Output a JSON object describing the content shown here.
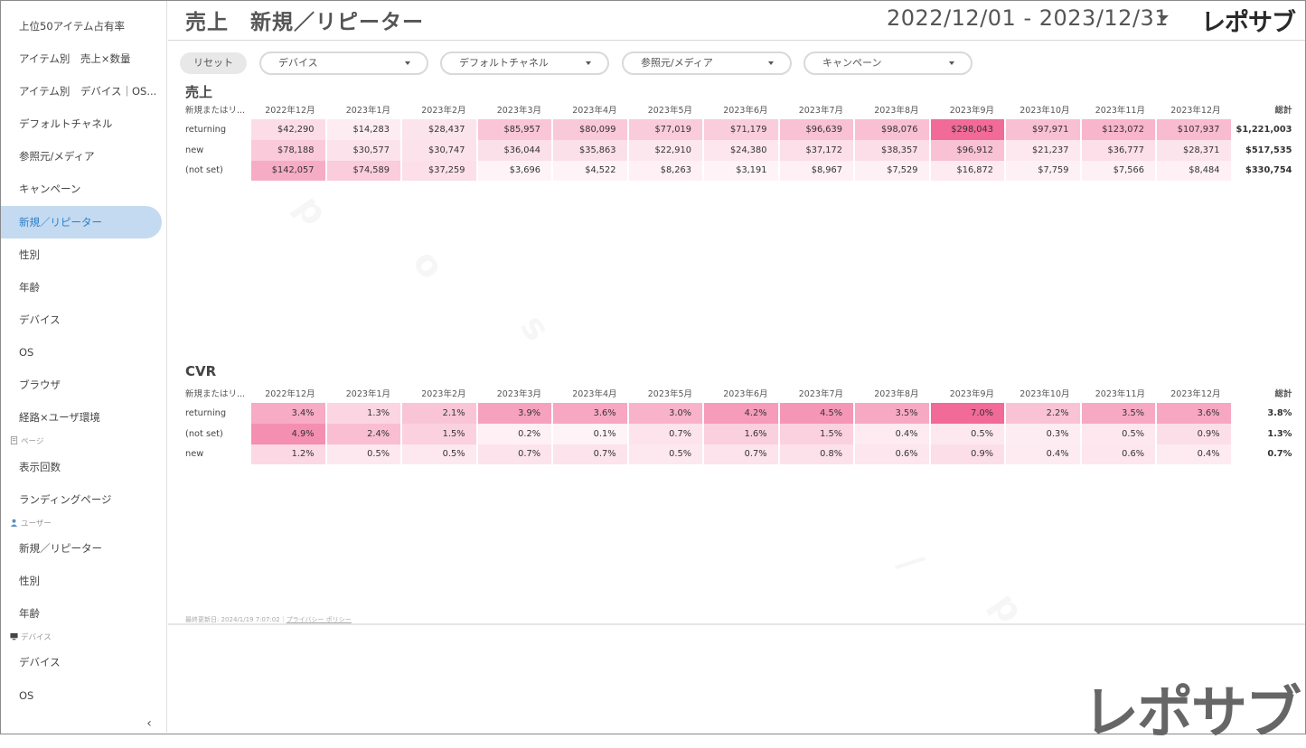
{
  "sidebar": {
    "items": [
      {
        "label": "上位50アイテム占有率"
      },
      {
        "label": "アイテム別　売上×数量"
      },
      {
        "label": "アイテム別　デバイス｜OS..."
      },
      {
        "label": "デフォルトチャネル"
      },
      {
        "label": "参照元/メディア"
      },
      {
        "label": "キャンペーン"
      },
      {
        "label": "新規／リピーター"
      },
      {
        "label": "性別"
      },
      {
        "label": "年齢"
      },
      {
        "label": "デバイス"
      },
      {
        "label": "OS"
      },
      {
        "label": "ブラウザ"
      },
      {
        "label": "経路×ユーザ環境"
      },
      {
        "label": "表示回数"
      },
      {
        "label": "ランディングページ"
      },
      {
        "label": "新規／リピーター"
      },
      {
        "label": "性別"
      },
      {
        "label": "年齢"
      },
      {
        "label": "デバイス"
      },
      {
        "label": "OS"
      }
    ],
    "sections": {
      "page": "ページ",
      "user": "ユーザー",
      "device": "デバイス"
    },
    "collapse_icon": "‹"
  },
  "header": {
    "title": "売上　新規／リピーター",
    "date_range": "2022/12/01 - 2023/12/31",
    "logo": "レポサブ"
  },
  "filters": {
    "reset": "リセット",
    "device": "デバイス",
    "channel": "デフォルトチャネル",
    "source": "参照元/メディア",
    "campaign": "キャンペーン"
  },
  "months": [
    "2022年12月",
    "2023年1月",
    "2023年2月",
    "2023年3月",
    "2023年4月",
    "2023年5月",
    "2023年6月",
    "2023年7月",
    "2023年8月",
    "2023年9月",
    "2023年10月",
    "2023年11月",
    "2023年12月"
  ],
  "sales": {
    "title": "売上",
    "dim_header": "新規またはリ...",
    "total_header": "総計",
    "rows": [
      {
        "name": "returning",
        "values": [
          "$42,290",
          "$14,283",
          "$28,437",
          "$85,957",
          "$80,099",
          "$77,019",
          "$71,179",
          "$96,639",
          "$98,076",
          "$298,043",
          "$97,971",
          "$123,072",
          "$107,937"
        ],
        "nums": [
          42290,
          14283,
          28437,
          85957,
          80099,
          77019,
          71179,
          96639,
          98076,
          298043,
          97971,
          123072,
          107937
        ],
        "total": "$1,221,003"
      },
      {
        "name": "new",
        "values": [
          "$78,188",
          "$30,577",
          "$30,747",
          "$36,044",
          "$35,863",
          "$22,910",
          "$24,380",
          "$37,172",
          "$38,357",
          "$96,912",
          "$21,237",
          "$36,777",
          "$28,371"
        ],
        "nums": [
          78188,
          30577,
          30747,
          36044,
          35863,
          22910,
          24380,
          37172,
          38357,
          96912,
          21237,
          36777,
          28371
        ],
        "total": "$517,535"
      },
      {
        "name": "(not set)",
        "values": [
          "$142,057",
          "$74,589",
          "$37,259",
          "$3,696",
          "$4,522",
          "$8,263",
          "$3,191",
          "$8,967",
          "$7,529",
          "$16,872",
          "$7,759",
          "$7,566",
          "$8,484"
        ],
        "nums": [
          142057,
          74589,
          37259,
          3696,
          4522,
          8263,
          3191,
          8967,
          7529,
          16872,
          7759,
          7566,
          8484
        ],
        "total": "$330,754"
      }
    ]
  },
  "cvr": {
    "title": "CVR",
    "dim_header": "新規またはリ...",
    "total_header": "総計",
    "rows": [
      {
        "name": "returning",
        "values": [
          "3.4%",
          "1.3%",
          "2.1%",
          "3.9%",
          "3.6%",
          "3.0%",
          "4.2%",
          "4.5%",
          "3.5%",
          "7.0%",
          "2.2%",
          "3.5%",
          "3.6%"
        ],
        "nums": [
          3.4,
          1.3,
          2.1,
          3.9,
          3.6,
          3.0,
          4.2,
          4.5,
          3.5,
          7.0,
          2.2,
          3.5,
          3.6
        ],
        "total": "3.8%"
      },
      {
        "name": "(not set)",
        "values": [
          "4.9%",
          "2.4%",
          "1.5%",
          "0.2%",
          "0.1%",
          "0.7%",
          "1.6%",
          "1.5%",
          "0.4%",
          "0.5%",
          "0.3%",
          "0.5%",
          "0.9%"
        ],
        "nums": [
          4.9,
          2.4,
          1.5,
          0.2,
          0.1,
          0.7,
          1.6,
          1.5,
          0.4,
          0.5,
          0.3,
          0.5,
          0.9
        ],
        "total": "1.3%"
      },
      {
        "name": "new",
        "values": [
          "1.2%",
          "0.5%",
          "0.5%",
          "0.7%",
          "0.7%",
          "0.5%",
          "0.7%",
          "0.8%",
          "0.6%",
          "0.9%",
          "0.4%",
          "0.6%",
          "0.4%"
        ],
        "nums": [
          1.2,
          0.5,
          0.5,
          0.7,
          0.7,
          0.5,
          0.7,
          0.8,
          0.6,
          0.9,
          0.4,
          0.6,
          0.4
        ],
        "total": "0.7%"
      }
    ]
  },
  "footer": {
    "updated": "最終更新日: 2024/1/19 7:07:02｜",
    "privacy": "プライバシー ポリシー"
  },
  "big_logo": "レポサブ",
  "heat_color": "#f06292"
}
